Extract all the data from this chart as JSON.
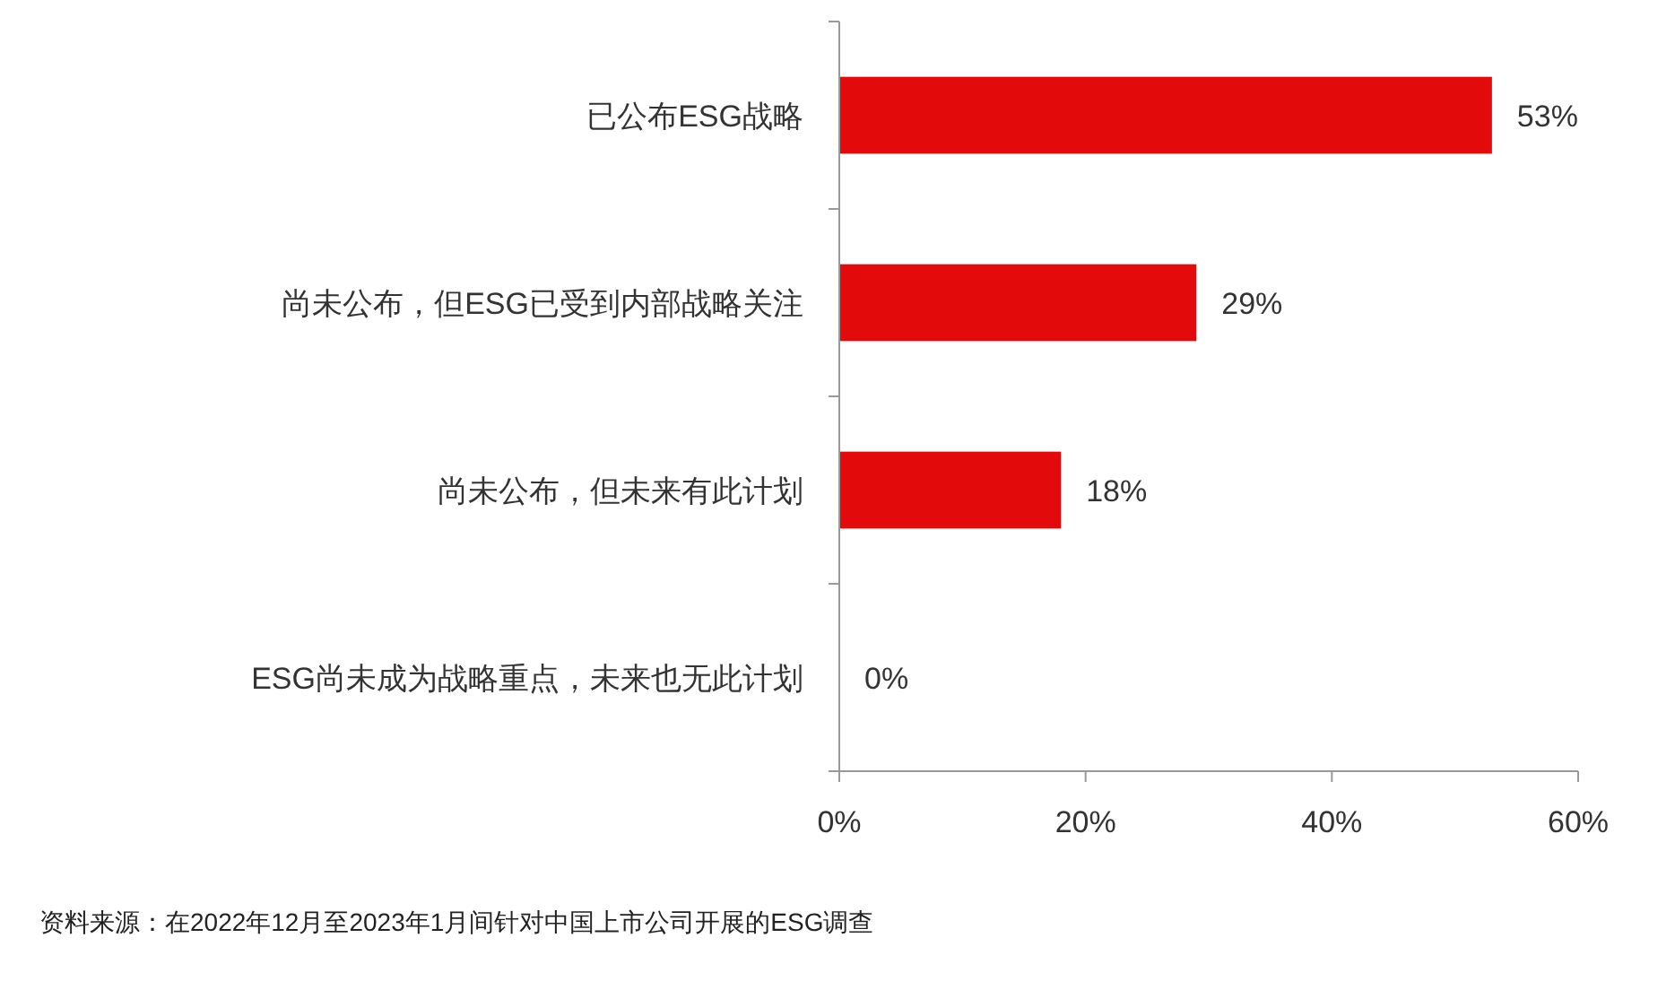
{
  "chart_data": {
    "type": "bar",
    "orientation": "horizontal",
    "categories": [
      "已公布ESG战略",
      "尚未公布，但ESG已受到内部战略关注",
      "尚未公布，但未来有此计划",
      "ESG尚未成为战略重点，未来也无此计划"
    ],
    "values": [
      53,
      29,
      18,
      0
    ],
    "value_labels": [
      "53%",
      "29%",
      "18%",
      "0%"
    ],
    "color": "#e20a0a",
    "xlim": [
      0,
      60
    ],
    "xticks": [
      {
        "value": 0,
        "label": "0%"
      },
      {
        "value": 20,
        "label": "20%"
      },
      {
        "value": 40,
        "label": "40%"
      },
      {
        "value": 60,
        "label": "60%"
      }
    ],
    "grid": false,
    "annotations": [
      "资料来源：在2022年12月至2023年1月间针对中国上市公司开展的ESG调查"
    ]
  }
}
